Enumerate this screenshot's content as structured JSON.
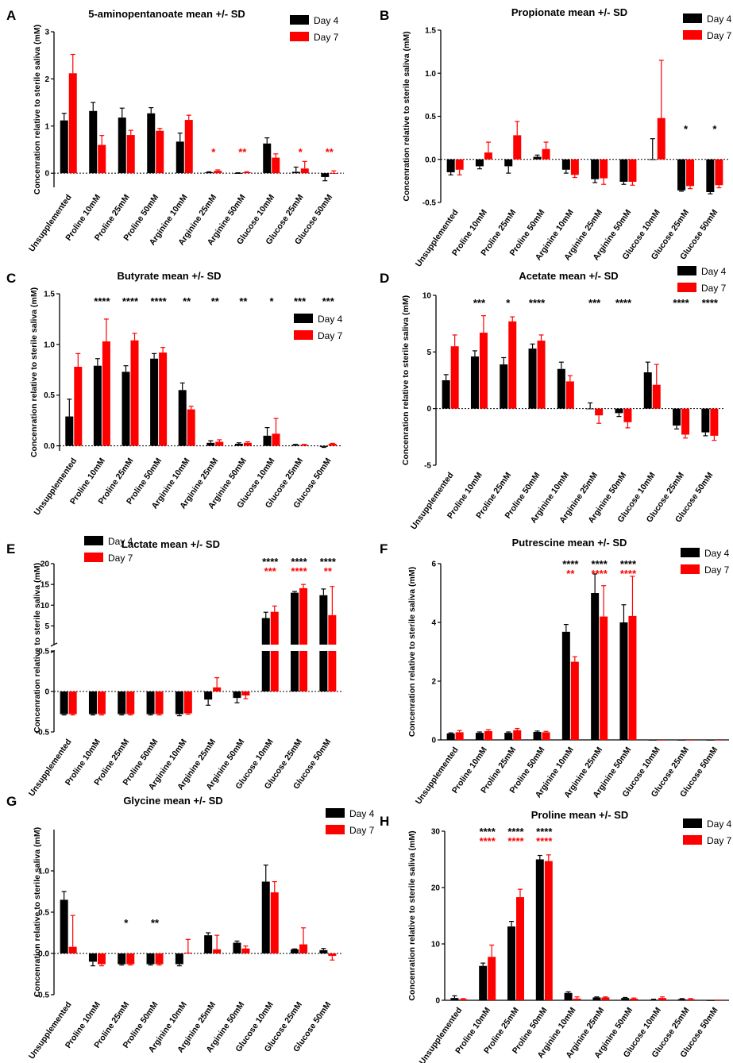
{
  "colors": {
    "day4": "#000000",
    "day7": "#ff0000",
    "axis": "#000000"
  },
  "chart_data": [
    {
      "panel": "A",
      "type": "bar",
      "title": "5-aminopentanoate mean +/- SD",
      "xlabel": "",
      "ylabel": "Concenration relative to sterile saliva (mM)",
      "categories": [
        "Unsupplemented",
        "Proline 10mM",
        "Proline 25mM",
        "Proline 50mM",
        "Arginine 10mM",
        "Arginine 25mM",
        "Arginine 50mM",
        "Glucose 10mM",
        "Glucose 25mM",
        "Glucose 50mM"
      ],
      "ylim": [
        -0.3,
        3
      ],
      "yticks": [
        0,
        1,
        2,
        3
      ],
      "legend": "top-right",
      "series": [
        {
          "name": "Day 4",
          "values": [
            1.12,
            1.32,
            1.18,
            1.27,
            0.67,
            0.02,
            0.0,
            0.63,
            0.03,
            -0.08
          ],
          "errors": [
            0.15,
            0.18,
            0.2,
            0.12,
            0.18,
            0.01,
            0.01,
            0.12,
            0.1,
            0.08
          ]
        },
        {
          "name": "Day 7",
          "values": [
            2.12,
            0.6,
            0.81,
            0.9,
            1.13,
            0.05,
            0.02,
            0.33,
            0.1,
            0.0
          ],
          "errors": [
            0.4,
            0.2,
            0.1,
            0.05,
            0.1,
            0.02,
            0.01,
            0.08,
            0.15,
            0.05
          ]
        }
      ],
      "annotations": [
        {
          "category": "Arginine 25mM",
          "text": "*",
          "color": "red"
        },
        {
          "category": "Arginine 50mM",
          "text": "**",
          "color": "red"
        },
        {
          "category": "Glucose 25mM",
          "text": "*",
          "color": "red"
        },
        {
          "category": "Glucose 50mM",
          "text": "**",
          "color": "red"
        }
      ]
    },
    {
      "panel": "B",
      "type": "bar",
      "title": "Propionate mean +/- SD",
      "xlabel": "",
      "ylabel": "Concenration relative to sterile saliva (mM)",
      "categories": [
        "Unsupplemented",
        "Proline 10mM",
        "Proline 25mM",
        "Proline 50mM",
        "Arginine 10mM",
        "Arginine 25mM",
        "Arginine 50mM",
        "Glucose 10mM",
        "Glucose 25mM",
        "Glucose 50mM"
      ],
      "ylim": [
        -0.5,
        1.5
      ],
      "yticks": [
        -0.5,
        0.0,
        0.5,
        1.0,
        1.5
      ],
      "legend": "top-right",
      "series": [
        {
          "name": "Day 4",
          "values": [
            -0.15,
            -0.08,
            -0.08,
            0.03,
            -0.12,
            -0.23,
            -0.26,
            0.0,
            -0.36,
            -0.38
          ],
          "errors": [
            0.03,
            0.03,
            0.08,
            0.02,
            0.04,
            0.04,
            0.03,
            0.24,
            0.01,
            0.02
          ]
        },
        {
          "name": "Day 7",
          "values": [
            -0.12,
            0.08,
            0.28,
            0.12,
            -0.18,
            -0.22,
            -0.26,
            0.48,
            -0.31,
            -0.3
          ],
          "errors": [
            0.06,
            0.12,
            0.16,
            0.08,
            0.03,
            0.07,
            0.04,
            0.67,
            0.03,
            0.03
          ]
        }
      ],
      "annotations": [
        {
          "category": "Glucose 25mM",
          "text": "*",
          "color": "black"
        },
        {
          "category": "Glucose 50mM",
          "text": "*",
          "color": "black"
        }
      ]
    },
    {
      "panel": "C",
      "type": "bar",
      "title": "Butyrate mean +/- SD",
      "xlabel": "",
      "ylabel": "Concenration relative to sterile saliva (mM)",
      "categories": [
        "Unsupplemented",
        "Proline 10mM",
        "Proline 25mM",
        "Proline 50mM",
        "Arginine 10mM",
        "Arginine 25mM",
        "Arginine 50mM",
        "Glucose 10mM",
        "Glucose 25mM",
        "Glucose 50mM"
      ],
      "ylim": [
        -0.05,
        1.5
      ],
      "yticks": [
        0.0,
        0.5,
        1.0,
        1.5
      ],
      "legend": "right",
      "series": [
        {
          "name": "Day 4",
          "values": [
            0.29,
            0.79,
            0.73,
            0.86,
            0.55,
            0.03,
            0.02,
            0.1,
            0.01,
            -0.01
          ],
          "errors": [
            0.17,
            0.07,
            0.06,
            0.05,
            0.07,
            0.02,
            0.01,
            0.08,
            0.005,
            0.005
          ]
        },
        {
          "name": "Day 7",
          "values": [
            0.78,
            1.03,
            1.04,
            0.92,
            0.36,
            0.04,
            0.03,
            0.12,
            0.01,
            0.02
          ],
          "errors": [
            0.13,
            0.22,
            0.07,
            0.05,
            0.03,
            0.02,
            0.01,
            0.15,
            0.005,
            0.005
          ]
        }
      ],
      "annotations": [
        {
          "category": "Proline 10mM",
          "text": "****",
          "color": "black"
        },
        {
          "category": "Proline 25mM",
          "text": "****",
          "color": "black"
        },
        {
          "category": "Proline 50mM",
          "text": "****",
          "color": "black"
        },
        {
          "category": "Arginine 10mM",
          "text": "**",
          "color": "black"
        },
        {
          "category": "Arginine 25mM",
          "text": "**",
          "color": "black"
        },
        {
          "category": "Arginine 50mM",
          "text": "**",
          "color": "black"
        },
        {
          "category": "Glucose 10mM",
          "text": "*",
          "color": "black"
        },
        {
          "category": "Glucose 25mM",
          "text": "***",
          "color": "black"
        },
        {
          "category": "Glucose 50mM",
          "text": "***",
          "color": "black"
        }
      ]
    },
    {
      "panel": "D",
      "type": "bar",
      "title": "Acetate mean +/- SD",
      "xlabel": "",
      "ylabel": "Concenration relative to sterile saliva (mM)",
      "categories": [
        "Unsupplemented",
        "Proline 10mM",
        "Proline 25mM",
        "Proline 50mM",
        "Arginine 10mM",
        "Arginine 25mM",
        "Arginine 50mM",
        "Glucose 10mM",
        "Glucose 25mM",
        "Glucose 50mM"
      ],
      "ylim": [
        -5,
        10
      ],
      "yticks": [
        -5,
        0,
        5,
        10
      ],
      "legend": "top-right",
      "series": [
        {
          "name": "Day 4",
          "values": [
            2.5,
            4.6,
            3.9,
            5.3,
            3.5,
            0.0,
            -0.4,
            3.2,
            -1.5,
            -2.1
          ],
          "errors": [
            0.5,
            0.5,
            0.6,
            0.4,
            0.6,
            0.5,
            0.3,
            0.9,
            0.3,
            0.3
          ]
        },
        {
          "name": "Day 7",
          "values": [
            5.5,
            6.7,
            7.7,
            6.0,
            2.4,
            -0.6,
            -1.2,
            2.1,
            -2.3,
            -2.4
          ],
          "errors": [
            1.0,
            1.5,
            0.4,
            0.5,
            0.5,
            0.7,
            0.5,
            1.8,
            0.3,
            0.4
          ]
        }
      ],
      "annotations": [
        {
          "category": "Proline 10mM",
          "text": "***",
          "color": "black"
        },
        {
          "category": "Proline 25mM",
          "text": "*",
          "color": "black"
        },
        {
          "category": "Proline 50mM",
          "text": "****",
          "color": "black"
        },
        {
          "category": "Arginine 25mM",
          "text": "***",
          "color": "black"
        },
        {
          "category": "Arginine 50mM",
          "text": "****",
          "color": "black"
        },
        {
          "category": "Glucose 25mM",
          "text": "****",
          "color": "black"
        },
        {
          "category": "Glucose 50mM",
          "text": "****",
          "color": "black"
        }
      ]
    },
    {
      "panel": "E",
      "type": "bar",
      "title": "Lactate mean +/- SD",
      "xlabel": "",
      "ylabel": "Concenration relative to sterile saliva (mM)",
      "categories": [
        "Unsupplemented",
        "Proline 10mM",
        "Proline 25mM",
        "Proline 50mM",
        "Arginine 10mM",
        "Arginine 25mM",
        "Arginine 50mM",
        "Glucose 10mM",
        "Glucose 25mM",
        "Glucose 50mM"
      ],
      "axis_break": {
        "lower": [
          -0.5,
          0.5
        ],
        "upper": [
          0.5,
          20
        ]
      },
      "yticks": [
        -0.5,
        0.0,
        0.5,
        5,
        10,
        15,
        20
      ],
      "legend": "top-left",
      "series": [
        {
          "name": "Day 4",
          "values": [
            -0.28,
            -0.28,
            -0.28,
            -0.28,
            -0.28,
            -0.1,
            -0.08,
            6.9,
            13.0,
            12.4
          ],
          "errors": [
            0.01,
            0.01,
            0.01,
            0.01,
            0.02,
            0.07,
            0.06,
            1.4,
            0.3,
            1.5
          ]
        },
        {
          "name": "Day 7",
          "values": [
            -0.28,
            -0.28,
            -0.28,
            -0.28,
            -0.27,
            0.05,
            -0.05,
            8.4,
            14.1,
            7.6
          ],
          "errors": [
            0.01,
            0.01,
            0.01,
            0.01,
            0.01,
            0.12,
            0.04,
            1.4,
            0.9,
            6.9
          ]
        }
      ],
      "annotations": [
        {
          "category": "Glucose 10mM",
          "text": "****",
          "color": "black"
        },
        {
          "category": "Glucose 25mM",
          "text": "****",
          "color": "black"
        },
        {
          "category": "Glucose 50mM",
          "text": "****",
          "color": "black"
        },
        {
          "category": "Glucose 10mM",
          "text": "***",
          "color": "red"
        },
        {
          "category": "Glucose 25mM",
          "text": "****",
          "color": "red"
        },
        {
          "category": "Glucose 50mM",
          "text": "**",
          "color": "red"
        }
      ]
    },
    {
      "panel": "F",
      "type": "bar",
      "title": "Putrescine mean +/- SD",
      "xlabel": "",
      "ylabel": "Concenration relative to sterile saliva (mM)",
      "categories": [
        "Unsupplemented",
        "Proline 10mM",
        "Proline 25mM",
        "Proline 50mM",
        "Arginine 10mM",
        "Arginine 25mM",
        "Arginine 50mM",
        "Glucose 10mM",
        "Glucose 25mM",
        "Glucose 50mM"
      ],
      "ylim": [
        0,
        6
      ],
      "yticks": [
        0,
        2,
        4,
        6
      ],
      "legend": "top-right",
      "series": [
        {
          "name": "Day 4",
          "values": [
            0.22,
            0.24,
            0.24,
            0.27,
            3.68,
            5.0,
            4.0,
            0,
            0,
            0
          ],
          "errors": [
            0.02,
            0.03,
            0.03,
            0.03,
            0.25,
            0.65,
            0.6,
            0,
            0,
            0
          ]
        },
        {
          "name": "Day 7",
          "values": [
            0.26,
            0.3,
            0.33,
            0.26,
            2.66,
            4.2,
            4.22,
            0,
            0,
            0
          ],
          "errors": [
            0.06,
            0.05,
            0.06,
            0.03,
            0.17,
            1.05,
            1.35,
            0,
            0,
            0
          ]
        }
      ],
      "annotations": [
        {
          "category": "Arginine 10mM",
          "text": "****",
          "color": "black"
        },
        {
          "category": "Arginine 25mM",
          "text": "****",
          "color": "black"
        },
        {
          "category": "Arginine 50mM",
          "text": "****",
          "color": "black"
        },
        {
          "category": "Arginine 10mM",
          "text": "**",
          "color": "red"
        },
        {
          "category": "Arginine 25mM",
          "text": "****",
          "color": "red"
        },
        {
          "category": "Arginine 50mM",
          "text": "****",
          "color": "red"
        }
      ]
    },
    {
      "panel": "G",
      "type": "bar",
      "title": "Glycine mean +/- SD",
      "xlabel": "",
      "ylabel": "Concenration relative to sterile saliva (mM)",
      "categories": [
        "Unsupplemented",
        "Proline 10mM",
        "Proline 25mM",
        "Proline 50mM",
        "Arginine 10mM",
        "Arginine 25mM",
        "Arginine 50mM",
        "Glucose 10mM",
        "Glucose 25mM",
        "Glucose 50mM"
      ],
      "ylim": [
        -0.5,
        1.5
      ],
      "yticks": [
        -0.5,
        0.0,
        0.5,
        1.0
      ],
      "legend": "top-right",
      "series": [
        {
          "name": "Day 4",
          "values": [
            0.65,
            -0.1,
            -0.13,
            -0.13,
            -0.13,
            0.22,
            0.13,
            0.87,
            0.05,
            0.04
          ],
          "errors": [
            0.1,
            0.05,
            0.01,
            0.01,
            0.02,
            0.03,
            0.02,
            0.2,
            0.005,
            0.02
          ]
        },
        {
          "name": "Day 7",
          "values": [
            0.08,
            -0.13,
            -0.13,
            -0.13,
            0.01,
            0.05,
            0.06,
            0.74,
            0.11,
            -0.03
          ],
          "errors": [
            0.38,
            0.02,
            0.01,
            0.01,
            0.16,
            0.17,
            0.03,
            0.13,
            0.2,
            0.05
          ]
        }
      ],
      "annotations": [
        {
          "category": "Proline 25mM",
          "text": "*",
          "color": "black"
        },
        {
          "category": "Proline 50mM",
          "text": "**",
          "color": "black"
        }
      ]
    },
    {
      "panel": "H",
      "type": "bar",
      "title": "Proline mean +/- SD",
      "xlabel": "",
      "ylabel": "Concenration relative to sterile saliva (mM)",
      "categories": [
        "Unsupplemented",
        "Proline 10mM",
        "Proline 25mM",
        "Proline 50mM",
        "Arginine 10mM",
        "Arginine 25mM",
        "Arginine 50mM",
        "Glucose 10mM",
        "Glucose 25mM",
        "Glucose 50mM"
      ],
      "ylim": [
        0,
        30
      ],
      "yticks": [
        0,
        10,
        20,
        30
      ],
      "legend": "top-right",
      "series": [
        {
          "name": "Day 4",
          "values": [
            0.4,
            6.1,
            13.1,
            25.0,
            1.3,
            0.5,
            0.4,
            0.1,
            0.2,
            0.0
          ],
          "errors": [
            0.4,
            0.5,
            0.9,
            0.7,
            0.2,
            0.1,
            0.1,
            0.1,
            0.1,
            0.0
          ]
        },
        {
          "name": "Day 7",
          "values": [
            0.2,
            7.7,
            18.3,
            24.7,
            0.3,
            0.5,
            0.3,
            0.4,
            0.2,
            0.0
          ],
          "errors": [
            0.1,
            2.1,
            1.4,
            1.1,
            0.3,
            0.1,
            0.1,
            0.2,
            0.1,
            0.0
          ]
        }
      ],
      "annotations": [
        {
          "category": "Proline 10mM",
          "text": "****",
          "color": "black"
        },
        {
          "category": "Proline 25mM",
          "text": "****",
          "color": "black"
        },
        {
          "category": "Proline 50mM",
          "text": "****",
          "color": "black"
        },
        {
          "category": "Proline 10mM",
          "text": "****",
          "color": "red"
        },
        {
          "category": "Proline 25mM",
          "text": "****",
          "color": "red"
        },
        {
          "category": "Proline 50mM",
          "text": "****",
          "color": "red"
        }
      ]
    }
  ]
}
